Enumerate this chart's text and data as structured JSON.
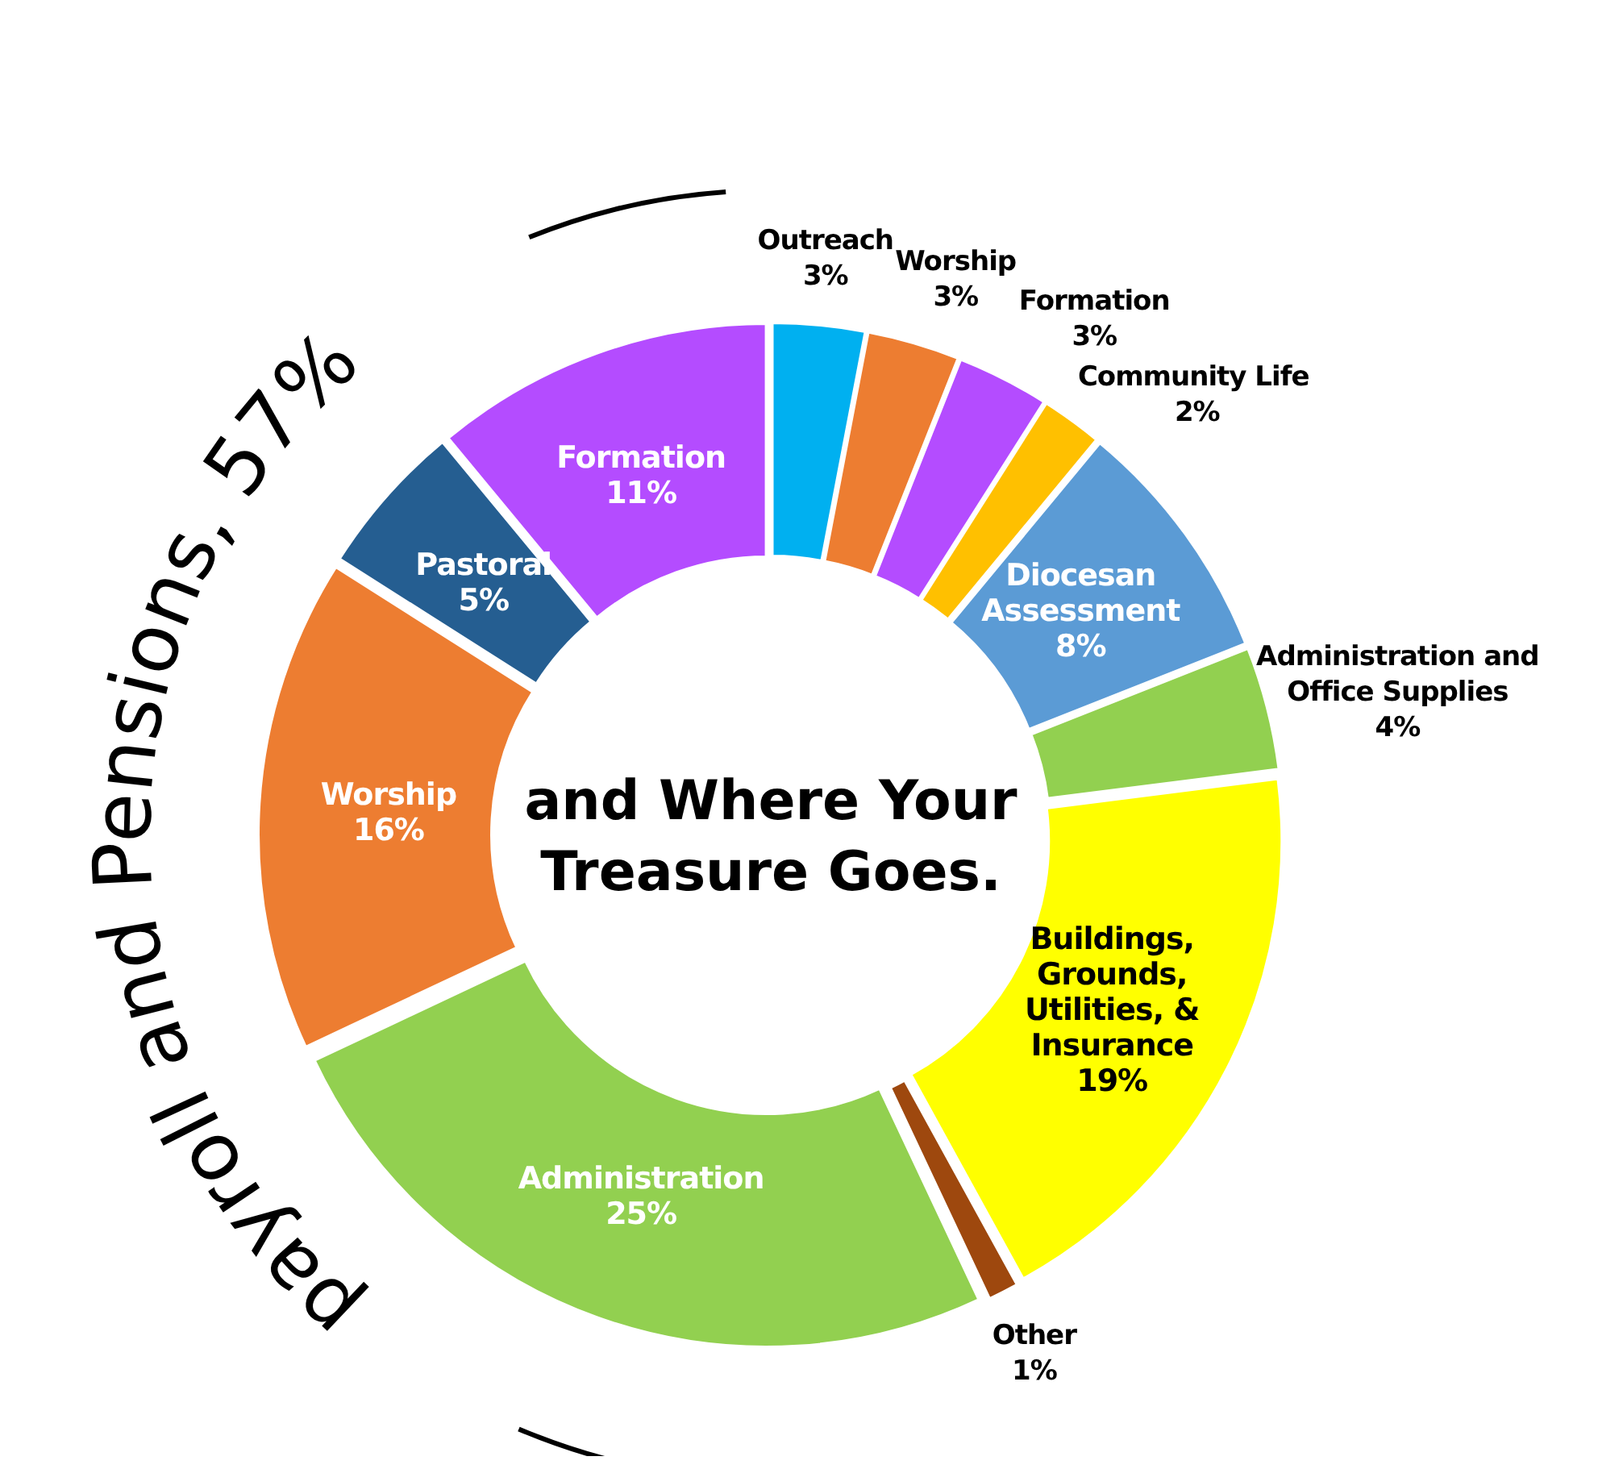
{
  "chart_data": {
    "type": "donut",
    "title": "and Where Your Treasure Goes.",
    "categories": [
      "Outreach",
      "Worship",
      "Formation",
      "Community Life",
      "Diocesan Assessment",
      "Administration and Office Supplies",
      "Buildings, Grounds, Utilities, & Insurance",
      "Other",
      "Administration",
      "Worship",
      "Pastoral",
      "Formation"
    ],
    "values": [
      3,
      3,
      3,
      2,
      8,
      4,
      19,
      1,
      25,
      16,
      5,
      11
    ],
    "value_labels": [
      "3%",
      "3%",
      "3%",
      "2%",
      "8%",
      "4%",
      "19%",
      "1%",
      "25%",
      "16%",
      "5%",
      "11%"
    ],
    "colors": [
      "#00b0f0",
      "#ed7d31",
      "#b44cff",
      "#ffc000",
      "#5b9bd5",
      "#92d050",
      "#ffff00",
      "#9e480e",
      "#92d050",
      "#ed7d31",
      "#255e91",
      "#b44cff"
    ],
    "annotations": [
      "payroll and Pensions, 57%"
    ]
  }
}
